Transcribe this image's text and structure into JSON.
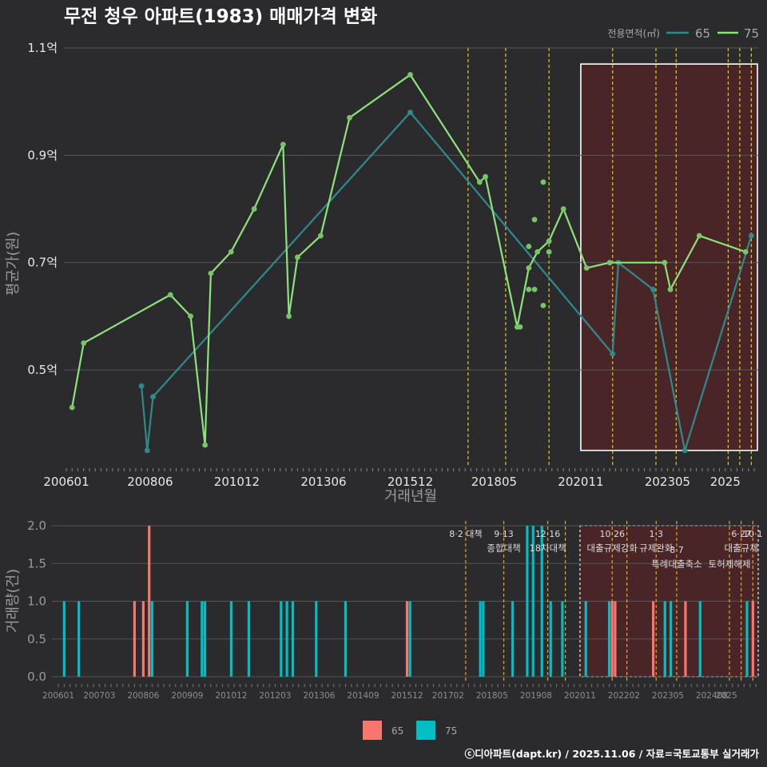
{
  "title": "무전 청우 아파트(1983) 매매가격 변화",
  "credit": "ⓒ디아파트(dapt.kr) / 2025.11.06 / 자료=국토교통부 실거래가",
  "colors": {
    "bg": "#2b2b2d",
    "grid": "#555559",
    "s65": "#2f8a8c",
    "s75": "#8ee27a",
    "pt75": "#79c46a",
    "bar65": "#f8766d",
    "bar75": "#00bfc4",
    "vline": "#e6c619",
    "vline2": "#e6a619",
    "highlight": "#4a2528"
  },
  "chart_data": [
    {
      "type": "line",
      "name": "price",
      "title": "무전 청우 아파트(1983) 매매가격 변화",
      "xlabel": "거래년월",
      "ylabel": "평균가(원)",
      "xlim": [
        "2006-01",
        "2025-11"
      ],
      "ylim": [
        0.32,
        1.1
      ],
      "y_ticks": [
        {
          "v": 0.5,
          "label": "0.5억"
        },
        {
          "v": 0.7,
          "label": "0.7억"
        },
        {
          "v": 0.9,
          "label": "0.9억"
        },
        {
          "v": 1.1,
          "label": "1.1억"
        }
      ],
      "x_ticks": [
        "200601",
        "200806",
        "201012",
        "201306",
        "201512",
        "201805",
        "202011",
        "202305",
        "2025"
      ],
      "legend_title": "전용면적(㎡)",
      "legend": [
        "65",
        "75"
      ],
      "series": [
        {
          "name": "65",
          "points": [
            [
              "2008-03",
              0.47
            ],
            [
              "2008-05",
              0.35
            ],
            [
              "2008-07",
              0.45
            ],
            [
              "2015-12",
              0.98
            ],
            [
              "2021-10",
              0.53
            ],
            [
              "2021-12",
              0.7
            ],
            [
              "2022-12",
              0.65
            ],
            [
              "2023-11",
              0.35
            ],
            [
              "2025-10",
              0.75
            ]
          ]
        },
        {
          "name": "75",
          "points": [
            [
              "2006-03",
              0.43
            ],
            [
              "2006-07",
              0.55
            ],
            [
              "2009-01",
              0.64
            ],
            [
              "2009-08",
              0.6
            ],
            [
              "2010-01",
              0.36
            ],
            [
              "2010-03",
              0.68
            ],
            [
              "2010-10",
              0.72
            ],
            [
              "2011-06",
              0.8
            ],
            [
              "2012-04",
              0.92
            ],
            [
              "2012-06",
              0.6
            ],
            [
              "2012-09",
              0.71
            ],
            [
              "2013-05",
              0.75
            ],
            [
              "2014-03",
              0.97
            ],
            [
              "2015-12",
              1.05
            ],
            [
              "2017-12",
              0.85
            ],
            [
              "2018-02",
              0.86
            ],
            [
              "2019-01",
              0.58
            ],
            [
              "2019-05",
              0.69
            ],
            [
              "2019-08",
              0.72
            ],
            [
              "2019-12",
              0.74
            ],
            [
              "2020-05",
              0.8
            ],
            [
              "2021-01",
              0.69
            ],
            [
              "2021-09",
              0.7
            ],
            [
              "2023-04",
              0.7
            ],
            [
              "2023-06",
              0.65
            ],
            [
              "2024-04",
              0.75
            ],
            [
              "2025-08",
              0.72
            ]
          ]
        }
      ],
      "extra_points_75": [
        [
          "2019-02",
          0.58
        ],
        [
          "2019-05",
          0.73
        ],
        [
          "2019-05",
          0.65
        ],
        [
          "2019-07",
          0.65
        ],
        [
          "2019-07",
          0.78
        ],
        [
          "2019-10",
          0.85
        ],
        [
          "2019-10",
          0.62
        ],
        [
          "2019-12",
          0.72
        ]
      ],
      "policy_lines": [
        "2017-08",
        "2018-09",
        "2019-12",
        "2021-10",
        "2023-01",
        "2023-08",
        "2025-02",
        "2025-06",
        "2025-10"
      ],
      "highlight": {
        "from": "2020-11",
        "to": "2025-11",
        "ymin": 0.35,
        "ymax": 1.07
      }
    },
    {
      "type": "bar",
      "name": "volume",
      "xlabel": "",
      "ylabel": "거래량(건)",
      "ylim": [
        0,
        2
      ],
      "y_ticks": [
        {
          "v": 0,
          "label": "0.0"
        },
        {
          "v": 0.5,
          "label": "0.5"
        },
        {
          "v": 1,
          "label": "1.0"
        },
        {
          "v": 1.5,
          "label": "1.5"
        },
        {
          "v": 2,
          "label": "2.0"
        }
      ],
      "x_ticks": [
        "200601",
        "200703",
        "200806",
        "200909",
        "201012",
        "201203",
        "201306",
        "201409",
        "201512",
        "201702",
        "201805",
        "201908",
        "202011",
        "202202",
        "202305",
        "202408",
        "2025"
      ],
      "series": [
        {
          "name": "65",
          "bars": [
            [
              "2008-03",
              1
            ],
            [
              "2008-06",
              1
            ],
            [
              "2008-08",
              2
            ],
            [
              "2015-12",
              1
            ],
            [
              "2021-10",
              1
            ],
            [
              "2021-11",
              1
            ],
            [
              "2022-12",
              1
            ],
            [
              "2023-11",
              1
            ],
            [
              "2025-10",
              1
            ]
          ]
        },
        {
          "name": "75",
          "bars": [
            [
              "2006-03",
              1
            ],
            [
              "2006-08",
              1
            ],
            [
              "2008-09",
              1
            ],
            [
              "2009-09",
              1
            ],
            [
              "2010-02",
              1
            ],
            [
              "2010-03",
              1
            ],
            [
              "2010-12",
              1
            ],
            [
              "2011-06",
              1
            ],
            [
              "2012-05",
              1
            ],
            [
              "2012-07",
              1
            ],
            [
              "2012-09",
              1
            ],
            [
              "2013-05",
              1
            ],
            [
              "2014-03",
              1
            ],
            [
              "2016-01",
              1
            ],
            [
              "2018-01",
              1
            ],
            [
              "2018-02",
              1
            ],
            [
              "2018-12",
              1
            ],
            [
              "2019-05",
              2
            ],
            [
              "2019-07",
              2
            ],
            [
              "2019-10",
              2
            ],
            [
              "2020-01",
              1
            ],
            [
              "2020-05",
              1
            ],
            [
              "2021-01",
              1
            ],
            [
              "2021-09",
              1
            ],
            [
              "2023-04",
              1
            ],
            [
              "2023-06",
              1
            ],
            [
              "2024-04",
              1
            ],
            [
              "2025-08",
              1
            ]
          ]
        }
      ],
      "policy_lines": [
        "2017-08",
        "2018-09",
        "2019-12",
        "2020-06",
        "2021-10",
        "2022-03",
        "2023-01",
        "2023-08",
        "2025-02",
        "2025-06",
        "2025-10"
      ],
      "highlight": {
        "from": "2020-11",
        "to": "2025-11"
      },
      "annotations": [
        {
          "date": "8·2 대책",
          "text": "",
          "anchor": "2017-08",
          "row": 0
        },
        {
          "date": "9·13",
          "text": "종합대책",
          "anchor": "2018-09",
          "row": 0
        },
        {
          "date": "12·16",
          "text": "18차대책",
          "anchor": "2019-12",
          "row": 0
        },
        {
          "date": "10·26",
          "text": "대출규제강화",
          "anchor": "2021-10",
          "row": 0
        },
        {
          "date": "1·3",
          "text": "규제완화",
          "anchor": "2023-01",
          "row": 0
        },
        {
          "date": "8·7",
          "text": "특례대출축소",
          "anchor": "2023-08",
          "row": 1
        },
        {
          "date": "",
          "text": "토허제해제",
          "anchor": "2025-02",
          "row": 1
        },
        {
          "date": "6·27",
          "text": "대출규제",
          "anchor": "2025-06",
          "row": 0
        },
        {
          "date": "10·1",
          "text": "",
          "anchor": "2025-10",
          "row": 0
        }
      ],
      "legend": [
        "65",
        "75"
      ]
    }
  ]
}
